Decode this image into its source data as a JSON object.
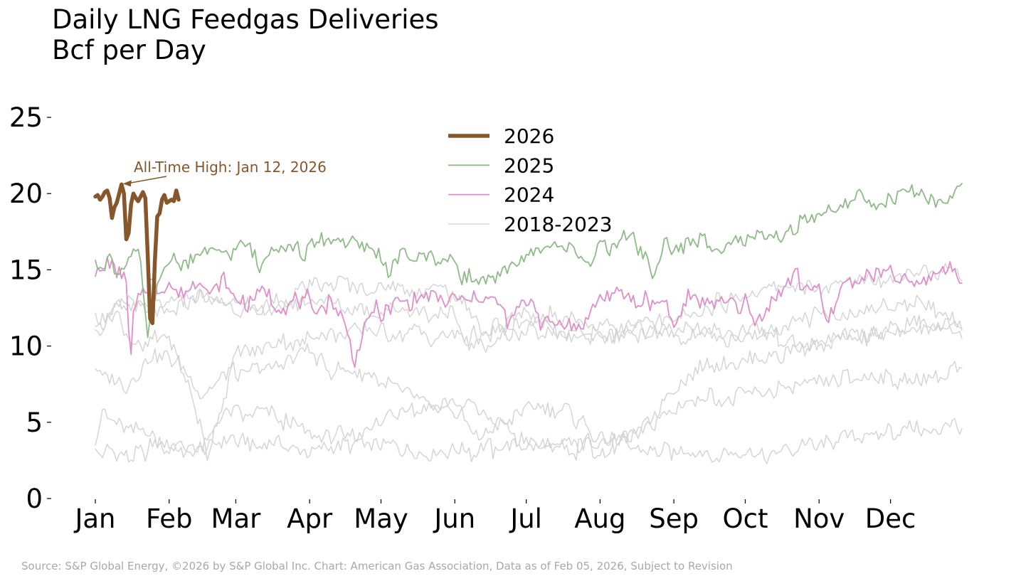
{
  "title_line1": "Daily LNG Feedgas Deliveries",
  "title_line2": "Bcf per Day",
  "source": "Source: S&P Global Energy, ©2026 by S&P Global Inc.  Chart: American Gas Association, Data as of Feb 05, 2026, Subject to Revision",
  "chart_data": {
    "type": "line",
    "title": "Daily LNG Feedgas Deliveries",
    "ylabel": "Bcf per Day",
    "xlabel": "",
    "ylim": [
      0,
      25
    ],
    "yticks": [
      0,
      5,
      10,
      15,
      20,
      25
    ],
    "months": [
      "Jan",
      "Feb",
      "Mar",
      "Apr",
      "May",
      "Jun",
      "Jul",
      "Aug",
      "Sep",
      "Oct",
      "Nov",
      "Dec"
    ],
    "month_start_days": [
      1,
      32,
      60,
      91,
      121,
      152,
      182,
      213,
      244,
      274,
      305,
      335
    ],
    "annotation": {
      "text": "All-Time High: Jan 12, 2026",
      "day": 12,
      "value": 20.6
    },
    "legend": [
      "2026",
      "2025",
      "2024",
      "2018-2023"
    ],
    "series": [
      {
        "name": "2018",
        "legend_group": "2018-2023",
        "color": "#d3d3d3",
        "width": 1.4,
        "points": [
          [
            1,
            3.3
          ],
          [
            15,
            2.6
          ],
          [
            25,
            3.4
          ],
          [
            45,
            3.1
          ],
          [
            60,
            3.8
          ],
          [
            90,
            3.3
          ],
          [
            120,
            3.6
          ],
          [
            152,
            3.0
          ],
          [
            182,
            3.5
          ],
          [
            213,
            3.6
          ],
          [
            235,
            3.4
          ],
          [
            260,
            2.8
          ],
          [
            274,
            2.7
          ],
          [
            290,
            3.2
          ],
          [
            305,
            3.6
          ],
          [
            335,
            4.5
          ],
          [
            350,
            4.3
          ],
          [
            365,
            5.0
          ]
        ]
      },
      {
        "name": "2019",
        "legend_group": "2018-2023",
        "color": "#d3d3d3",
        "width": 1.4,
        "points": [
          [
            1,
            4.0
          ],
          [
            5,
            5.5
          ],
          [
            15,
            4.8
          ],
          [
            30,
            3.7
          ],
          [
            46,
            3.2
          ],
          [
            55,
            5.4
          ],
          [
            75,
            5.5
          ],
          [
            90,
            4.1
          ],
          [
            110,
            4.2
          ],
          [
            130,
            5.8
          ],
          [
            152,
            6.2
          ],
          [
            160,
            3.8
          ],
          [
            182,
            5.9
          ],
          [
            200,
            5.7
          ],
          [
            213,
            3.8
          ],
          [
            230,
            4.6
          ],
          [
            245,
            6.0
          ],
          [
            255,
            6.6
          ],
          [
            274,
            6.6
          ],
          [
            300,
            7.5
          ],
          [
            320,
            8.0
          ],
          [
            340,
            7.6
          ],
          [
            355,
            8.0
          ],
          [
            365,
            8.6
          ]
        ]
      },
      {
        "name": "2020",
        "legend_group": "2018-2023",
        "color": "#d3d3d3",
        "width": 1.4,
        "points": [
          [
            1,
            8.3
          ],
          [
            15,
            7.5
          ],
          [
            25,
            9.5
          ],
          [
            35,
            9.0
          ],
          [
            45,
            6.7
          ],
          [
            55,
            8.3
          ],
          [
            75,
            8.5
          ],
          [
            90,
            9.8
          ],
          [
            100,
            8.3
          ],
          [
            115,
            8.2
          ],
          [
            130,
            6.9
          ],
          [
            145,
            5.5
          ],
          [
            160,
            6.1
          ],
          [
            182,
            3.7
          ],
          [
            200,
            3.2
          ],
          [
            213,
            3.3
          ],
          [
            228,
            4.0
          ],
          [
            240,
            6.6
          ],
          [
            255,
            8.6
          ],
          [
            274,
            9.0
          ],
          [
            300,
            9.9
          ],
          [
            320,
            10.6
          ],
          [
            340,
            11.2
          ],
          [
            355,
            11.5
          ],
          [
            365,
            10.9
          ]
        ]
      },
      {
        "name": "2021",
        "legend_group": "2018-2023",
        "color": "#d3d3d3",
        "width": 1.4,
        "points": [
          [
            1,
            10.6
          ],
          [
            10,
            12.0
          ],
          [
            20,
            9.6
          ],
          [
            30,
            11.1
          ],
          [
            43,
            6.1
          ],
          [
            48,
            2.5
          ],
          [
            52,
            5.0
          ],
          [
            60,
            9.5
          ],
          [
            90,
            10.5
          ],
          [
            120,
            11.0
          ],
          [
            152,
            10.5
          ],
          [
            182,
            11.0
          ],
          [
            213,
            10.4
          ],
          [
            220,
            10.8
          ],
          [
            240,
            11.1
          ],
          [
            255,
            10.4
          ],
          [
            274,
            11.1
          ],
          [
            300,
            10.3
          ],
          [
            330,
            10.6
          ],
          [
            350,
            11.2
          ],
          [
            365,
            11.7
          ]
        ]
      },
      {
        "name": "2022",
        "legend_group": "2018-2023",
        "color": "#d3d3d3",
        "width": 1.4,
        "points": [
          [
            1,
            11.4
          ],
          [
            15,
            12.8
          ],
          [
            30,
            12.0
          ],
          [
            45,
            13.1
          ],
          [
            60,
            12.5
          ],
          [
            90,
            12.9
          ],
          [
            120,
            12.2
          ],
          [
            152,
            12.0
          ],
          [
            158,
            10.0
          ],
          [
            170,
            10.5
          ],
          [
            182,
            11.5
          ],
          [
            213,
            10.6
          ],
          [
            240,
            11.0
          ],
          [
            274,
            10.5
          ],
          [
            300,
            11.8
          ],
          [
            320,
            12.0
          ],
          [
            340,
            12.9
          ],
          [
            355,
            12.3
          ],
          [
            365,
            11.6
          ]
        ]
      },
      {
        "name": "2023",
        "legend_group": "2018-2023",
        "color": "#d3d3d3",
        "width": 1.4,
        "points": [
          [
            1,
            11.9
          ],
          [
            15,
            12.6
          ],
          [
            30,
            13.0
          ],
          [
            45,
            13.4
          ],
          [
            60,
            12.7
          ],
          [
            80,
            12.5
          ],
          [
            91,
            14.2
          ],
          [
            105,
            13.9
          ],
          [
            121,
            13.8
          ],
          [
            152,
            13.5
          ],
          [
            165,
            10.9
          ],
          [
            182,
            12.1
          ],
          [
            213,
            11.4
          ],
          [
            244,
            11.5
          ],
          [
            255,
            12.5
          ],
          [
            274,
            13.2
          ],
          [
            290,
            13.8
          ],
          [
            305,
            14.0
          ],
          [
            320,
            14.3
          ],
          [
            335,
            14.5
          ],
          [
            350,
            15.0
          ],
          [
            365,
            14.8
          ]
        ]
      },
      {
        "name": "2024",
        "legend_group": "2024",
        "color": "#e08ec9",
        "width": 1.8,
        "points": [
          [
            1,
            15.1
          ],
          [
            4,
            14.6
          ],
          [
            6,
            15.3
          ],
          [
            10,
            14.8
          ],
          [
            13,
            14.9
          ],
          [
            14,
            13.9
          ],
          [
            15,
            11.0
          ],
          [
            16,
            9.3
          ],
          [
            17,
            12.0
          ],
          [
            20,
            13.8
          ],
          [
            24,
            14.3
          ],
          [
            28,
            13.9
          ],
          [
            32,
            14.4
          ],
          [
            36,
            13.6
          ],
          [
            40,
            13.9
          ],
          [
            45,
            14.1
          ],
          [
            50,
            13.6
          ],
          [
            55,
            14.3
          ],
          [
            58,
            13.6
          ],
          [
            62,
            13.3
          ],
          [
            65,
            12.4
          ],
          [
            68,
            13.1
          ],
          [
            72,
            13.6
          ],
          [
            76,
            13.0
          ],
          [
            80,
            12.6
          ],
          [
            85,
            13.2
          ],
          [
            90,
            13.1
          ],
          [
            92,
            11.9
          ],
          [
            96,
            12.9
          ],
          [
            100,
            12.8
          ],
          [
            104,
            12.2
          ],
          [
            107,
            11.1
          ],
          [
            110,
            9.3
          ],
          [
            112,
            10.4
          ],
          [
            116,
            11.9
          ],
          [
            120,
            12.4
          ],
          [
            125,
            12.2
          ],
          [
            130,
            13.1
          ],
          [
            140,
            13.0
          ],
          [
            152,
            13.2
          ],
          [
            160,
            13.1
          ],
          [
            170,
            12.6
          ],
          [
            175,
            11.4
          ],
          [
            178,
            12.5
          ],
          [
            185,
            13.3
          ],
          [
            188,
            11.5
          ],
          [
            195,
            11.3
          ],
          [
            205,
            11.4
          ],
          [
            213,
            13.2
          ],
          [
            220,
            13.1
          ],
          [
            230,
            12.8
          ],
          [
            240,
            13.3
          ],
          [
            244,
            11.3
          ],
          [
            250,
            13.5
          ],
          [
            260,
            12.8
          ],
          [
            274,
            12.8
          ],
          [
            278,
            11.5
          ],
          [
            285,
            13.0
          ],
          [
            295,
            14.6
          ],
          [
            305,
            13.4
          ],
          [
            308,
            11.3
          ],
          [
            315,
            14.2
          ],
          [
            325,
            14.3
          ],
          [
            335,
            14.6
          ],
          [
            345,
            14.0
          ],
          [
            350,
            14.4
          ],
          [
            357,
            15.0
          ],
          [
            365,
            14.9
          ]
        ]
      },
      {
        "name": "2025",
        "legend_group": "2025",
        "color": "#8fbb88",
        "width": 1.8,
        "points": [
          [
            1,
            15.2
          ],
          [
            4,
            15.5
          ],
          [
            8,
            15.4
          ],
          [
            10,
            14.5
          ],
          [
            13,
            15.3
          ],
          [
            16,
            15.9
          ],
          [
            19,
            16.0
          ],
          [
            21,
            14.2
          ],
          [
            22,
            12.3
          ],
          [
            23,
            10.4
          ],
          [
            25,
            13.1
          ],
          [
            28,
            14.2
          ],
          [
            31,
            15.4
          ],
          [
            35,
            15.6
          ],
          [
            40,
            15.8
          ],
          [
            45,
            16.1
          ],
          [
            55,
            16.3
          ],
          [
            65,
            16.6
          ],
          [
            70,
            15.2
          ],
          [
            75,
            16.6
          ],
          [
            80,
            16.5
          ],
          [
            90,
            16.2
          ],
          [
            95,
            17.2
          ],
          [
            100,
            17.0
          ],
          [
            110,
            16.5
          ],
          [
            120,
            16.3
          ],
          [
            125,
            14.9
          ],
          [
            130,
            16.3
          ],
          [
            138,
            15.9
          ],
          [
            145,
            15.7
          ],
          [
            152,
            15.8
          ],
          [
            155,
            14.2
          ],
          [
            160,
            14.6
          ],
          [
            165,
            14.1
          ],
          [
            170,
            14.7
          ],
          [
            175,
            15.6
          ],
          [
            182,
            15.9
          ],
          [
            190,
            16.3
          ],
          [
            200,
            16.6
          ],
          [
            210,
            15.6
          ],
          [
            213,
            16.4
          ],
          [
            220,
            16.6
          ],
          [
            225,
            17.2
          ],
          [
            232,
            16.0
          ],
          [
            235,
            14.6
          ],
          [
            240,
            16.5
          ],
          [
            245,
            16.6
          ],
          [
            255,
            16.8
          ],
          [
            265,
            16.5
          ],
          [
            274,
            17.0
          ],
          [
            280,
            17.3
          ],
          [
            290,
            17.5
          ],
          [
            300,
            18.1
          ],
          [
            305,
            18.6
          ],
          [
            310,
            19.0
          ],
          [
            316,
            19.4
          ],
          [
            322,
            19.7
          ],
          [
            330,
            19.2
          ],
          [
            335,
            19.6
          ],
          [
            340,
            20.2
          ],
          [
            346,
            20.3
          ],
          [
            350,
            19.5
          ],
          [
            355,
            19.2
          ],
          [
            360,
            19.5
          ],
          [
            363,
            20.2
          ],
          [
            365,
            20.3
          ]
        ]
      },
      {
        "name": "2026",
        "legend_group": "2026",
        "color": "#87562a",
        "width": 5.5,
        "points": [
          [
            1,
            19.8
          ],
          [
            2,
            19.9
          ],
          [
            3,
            19.6
          ],
          [
            4,
            19.8
          ],
          [
            5,
            20.1
          ],
          [
            6,
            20.2
          ],
          [
            7,
            19.7
          ],
          [
            8,
            18.4
          ],
          [
            9,
            19.1
          ],
          [
            10,
            19.4
          ],
          [
            11,
            20.0
          ],
          [
            12,
            20.6
          ],
          [
            13,
            20.0
          ],
          [
            14,
            17.0
          ],
          [
            15,
            17.4
          ],
          [
            16,
            19.3
          ],
          [
            17,
            20.0
          ],
          [
            18,
            19.7
          ],
          [
            19,
            19.5
          ],
          [
            20,
            19.8
          ],
          [
            21,
            20.1
          ],
          [
            22,
            19.7
          ],
          [
            23,
            16.0
          ],
          [
            24,
            11.8
          ],
          [
            25,
            11.5
          ],
          [
            26,
            15.6
          ],
          [
            27,
            18.5
          ],
          [
            28,
            18.7
          ],
          [
            29,
            19.6
          ],
          [
            30,
            19.9
          ],
          [
            31,
            19.4
          ],
          [
            32,
            19.5
          ],
          [
            33,
            19.6
          ],
          [
            34,
            19.5
          ],
          [
            35,
            20.2
          ],
          [
            36,
            19.6
          ]
        ]
      }
    ]
  }
}
